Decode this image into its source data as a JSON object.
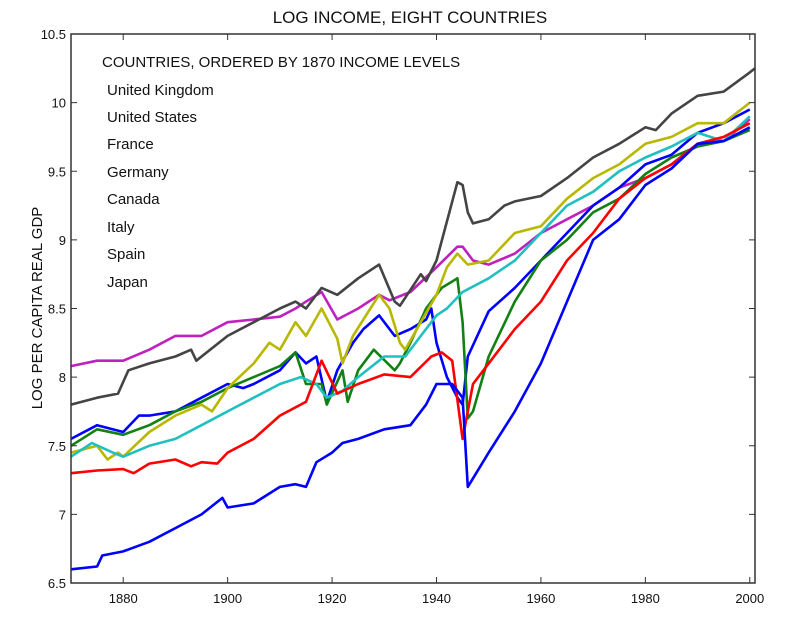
{
  "chart_data": {
    "type": "line",
    "title": "LOG INCOME, EIGHT COUNTRIES",
    "xlabel": "",
    "ylabel": "LOG PER CAPITA REAL GDP",
    "xlim": [
      1870,
      2001
    ],
    "ylim": [
      6.5,
      10.5
    ],
    "xticks": [
      1880,
      1900,
      1920,
      1940,
      1960,
      1980,
      2000
    ],
    "yticks": [
      6.5,
      7,
      7.5,
      8,
      8.5,
      9,
      9.5,
      10,
      10.5
    ],
    "grid": false,
    "legend": {
      "title": "COUNTRIES, ORDERED BY 1870 INCOME LEVELS",
      "placement": "top-left",
      "entries": [
        "United Kingdom",
        "United States",
        "France",
        "Germany",
        "Canada",
        "Italy",
        "Spain",
        "Japan"
      ]
    },
    "series": [
      {
        "color": "#c020c0",
        "points": [
          [
            1870,
            8.08
          ],
          [
            1875,
            8.12
          ],
          [
            1880,
            8.12
          ],
          [
            1885,
            8.2
          ],
          [
            1890,
            8.3
          ],
          [
            1895,
            8.3
          ],
          [
            1900,
            8.4
          ],
          [
            1905,
            8.42
          ],
          [
            1910,
            8.44
          ],
          [
            1913,
            8.5
          ],
          [
            1915,
            8.55
          ],
          [
            1918,
            8.62
          ],
          [
            1921,
            8.42
          ],
          [
            1925,
            8.5
          ],
          [
            1929,
            8.6
          ],
          [
            1931,
            8.56
          ],
          [
            1935,
            8.62
          ],
          [
            1940,
            8.8
          ],
          [
            1944,
            8.95
          ],
          [
            1945,
            8.95
          ],
          [
            1947,
            8.85
          ],
          [
            1950,
            8.82
          ],
          [
            1955,
            8.9
          ],
          [
            1960,
            9.05
          ],
          [
            1965,
            9.15
          ],
          [
            1970,
            9.25
          ],
          [
            1975,
            9.38
          ],
          [
            1980,
            9.45
          ],
          [
            1985,
            9.55
          ],
          [
            1990,
            9.7
          ],
          [
            1995,
            9.72
          ],
          [
            2000,
            9.88
          ]
        ]
      },
      {
        "color": "#444444",
        "points": [
          [
            1870,
            7.8
          ],
          [
            1875,
            7.85
          ],
          [
            1879,
            7.88
          ],
          [
            1881,
            8.05
          ],
          [
            1885,
            8.1
          ],
          [
            1890,
            8.15
          ],
          [
            1893,
            8.2
          ],
          [
            1894,
            8.12
          ],
          [
            1900,
            8.3
          ],
          [
            1905,
            8.4
          ],
          [
            1910,
            8.5
          ],
          [
            1913,
            8.55
          ],
          [
            1915,
            8.5
          ],
          [
            1918,
            8.65
          ],
          [
            1921,
            8.6
          ],
          [
            1925,
            8.72
          ],
          [
            1929,
            8.82
          ],
          [
            1932,
            8.55
          ],
          [
            1933,
            8.52
          ],
          [
            1937,
            8.75
          ],
          [
            1938,
            8.7
          ],
          [
            1940,
            8.85
          ],
          [
            1944,
            9.42
          ],
          [
            1945,
            9.4
          ],
          [
            1946,
            9.2
          ],
          [
            1947,
            9.12
          ],
          [
            1950,
            9.15
          ],
          [
            1953,
            9.25
          ],
          [
            1955,
            9.28
          ],
          [
            1960,
            9.32
          ],
          [
            1965,
            9.45
          ],
          [
            1970,
            9.6
          ],
          [
            1975,
            9.7
          ],
          [
            1980,
            9.82
          ],
          [
            1982,
            9.8
          ],
          [
            1985,
            9.92
          ],
          [
            1990,
            10.05
          ],
          [
            1995,
            10.08
          ],
          [
            2000,
            10.22
          ],
          [
            2001,
            10.25
          ]
        ]
      },
      {
        "color": "#0000ff",
        "points": [
          [
            1870,
            7.55
          ],
          [
            1875,
            7.65
          ],
          [
            1880,
            7.6
          ],
          [
            1883,
            7.72
          ],
          [
            1885,
            7.72
          ],
          [
            1890,
            7.75
          ],
          [
            1895,
            7.85
          ],
          [
            1900,
            7.95
          ],
          [
            1903,
            7.92
          ],
          [
            1905,
            7.95
          ],
          [
            1910,
            8.05
          ],
          [
            1913,
            8.18
          ],
          [
            1915,
            8.1
          ],
          [
            1917,
            8.15
          ],
          [
            1919,
            7.82
          ],
          [
            1921,
            8.05
          ],
          [
            1924,
            8.25
          ],
          [
            1926,
            8.35
          ],
          [
            1929,
            8.45
          ],
          [
            1932,
            8.3
          ],
          [
            1935,
            8.35
          ],
          [
            1938,
            8.42
          ],
          [
            1939,
            8.5
          ],
          [
            1940,
            8.25
          ],
          [
            1942,
            8.0
          ],
          [
            1944,
            7.85
          ],
          [
            1945,
            7.8
          ],
          [
            1946,
            8.15
          ],
          [
            1950,
            8.48
          ],
          [
            1955,
            8.65
          ],
          [
            1960,
            8.85
          ],
          [
            1965,
            9.05
          ],
          [
            1970,
            9.25
          ],
          [
            1975,
            9.38
          ],
          [
            1980,
            9.55
          ],
          [
            1985,
            9.62
          ],
          [
            1990,
            9.78
          ],
          [
            1995,
            9.85
          ],
          [
            2000,
            9.95
          ]
        ]
      },
      {
        "color": "#138013",
        "points": [
          [
            1870,
            7.5
          ],
          [
            1875,
            7.62
          ],
          [
            1880,
            7.58
          ],
          [
            1885,
            7.65
          ],
          [
            1890,
            7.75
          ],
          [
            1895,
            7.82
          ],
          [
            1900,
            7.92
          ],
          [
            1905,
            8.0
          ],
          [
            1910,
            8.08
          ],
          [
            1913,
            8.18
          ],
          [
            1915,
            7.95
          ],
          [
            1918,
            7.95
          ],
          [
            1919,
            7.8
          ],
          [
            1922,
            8.05
          ],
          [
            1923,
            7.82
          ],
          [
            1925,
            8.05
          ],
          [
            1928,
            8.2
          ],
          [
            1932,
            8.05
          ],
          [
            1933,
            8.1
          ],
          [
            1935,
            8.25
          ],
          [
            1938,
            8.5
          ],
          [
            1941,
            8.65
          ],
          [
            1944,
            8.72
          ],
          [
            1945,
            8.4
          ],
          [
            1946,
            7.7
          ],
          [
            1947,
            7.75
          ],
          [
            1950,
            8.15
          ],
          [
            1955,
            8.55
          ],
          [
            1960,
            8.85
          ],
          [
            1965,
            9.0
          ],
          [
            1970,
            9.2
          ],
          [
            1975,
            9.3
          ],
          [
            1980,
            9.48
          ],
          [
            1985,
            9.6
          ],
          [
            1990,
            9.68
          ],
          [
            1995,
            9.72
          ],
          [
            2000,
            9.8
          ]
        ]
      },
      {
        "color": "#b8b800",
        "points": [
          [
            1870,
            7.45
          ],
          [
            1875,
            7.5
          ],
          [
            1877,
            7.4
          ],
          [
            1879,
            7.45
          ],
          [
            1880,
            7.42
          ],
          [
            1885,
            7.6
          ],
          [
            1890,
            7.72
          ],
          [
            1895,
            7.8
          ],
          [
            1897,
            7.75
          ],
          [
            1900,
            7.92
          ],
          [
            1905,
            8.1
          ],
          [
            1908,
            8.25
          ],
          [
            1910,
            8.2
          ],
          [
            1913,
            8.4
          ],
          [
            1915,
            8.3
          ],
          [
            1918,
            8.5
          ],
          [
            1921,
            8.28
          ],
          [
            1922,
            8.1
          ],
          [
            1924,
            8.3
          ],
          [
            1926,
            8.42
          ],
          [
            1929,
            8.6
          ],
          [
            1931,
            8.5
          ],
          [
            1933,
            8.25
          ],
          [
            1934,
            8.2
          ],
          [
            1937,
            8.4
          ],
          [
            1940,
            8.6
          ],
          [
            1942,
            8.8
          ],
          [
            1944,
            8.9
          ],
          [
            1946,
            8.82
          ],
          [
            1950,
            8.85
          ],
          [
            1955,
            9.05
          ],
          [
            1960,
            9.1
          ],
          [
            1965,
            9.3
          ],
          [
            1970,
            9.45
          ],
          [
            1975,
            9.55
          ],
          [
            1980,
            9.7
          ],
          [
            1985,
            9.75
          ],
          [
            1990,
            9.85
          ],
          [
            1995,
            9.85
          ],
          [
            2000,
            10.0
          ]
        ]
      },
      {
        "color": "#20c0c0",
        "points": [
          [
            1870,
            7.42
          ],
          [
            1874,
            7.52
          ],
          [
            1878,
            7.45
          ],
          [
            1880,
            7.42
          ],
          [
            1885,
            7.5
          ],
          [
            1890,
            7.55
          ],
          [
            1895,
            7.65
          ],
          [
            1900,
            7.75
          ],
          [
            1905,
            7.85
          ],
          [
            1910,
            7.95
          ],
          [
            1914,
            8.0
          ],
          [
            1917,
            7.95
          ],
          [
            1919,
            7.85
          ],
          [
            1922,
            7.9
          ],
          [
            1925,
            8.0
          ],
          [
            1930,
            8.15
          ],
          [
            1934,
            8.15
          ],
          [
            1937,
            8.3
          ],
          [
            1940,
            8.45
          ],
          [
            1942,
            8.5
          ],
          [
            1945,
            8.62
          ],
          [
            1950,
            8.72
          ],
          [
            1955,
            8.85
          ],
          [
            1960,
            9.05
          ],
          [
            1965,
            9.25
          ],
          [
            1970,
            9.35
          ],
          [
            1975,
            9.5
          ],
          [
            1980,
            9.6
          ],
          [
            1985,
            9.68
          ],
          [
            1990,
            9.78
          ],
          [
            1995,
            9.72
          ],
          [
            2000,
            9.9
          ]
        ]
      },
      {
        "color": "#ff0000",
        "points": [
          [
            1870,
            7.3
          ],
          [
            1875,
            7.32
          ],
          [
            1880,
            7.33
          ],
          [
            1882,
            7.3
          ],
          [
            1885,
            7.37
          ],
          [
            1890,
            7.4
          ],
          [
            1893,
            7.35
          ],
          [
            1895,
            7.38
          ],
          [
            1898,
            7.37
          ],
          [
            1900,
            7.45
          ],
          [
            1905,
            7.55
          ],
          [
            1910,
            7.72
          ],
          [
            1915,
            7.82
          ],
          [
            1918,
            8.12
          ],
          [
            1921,
            7.88
          ],
          [
            1925,
            7.95
          ],
          [
            1930,
            8.02
          ],
          [
            1935,
            8.0
          ],
          [
            1939,
            8.15
          ],
          [
            1941,
            8.18
          ],
          [
            1943,
            8.12
          ],
          [
            1945,
            7.55
          ],
          [
            1947,
            7.95
          ],
          [
            1950,
            8.1
          ],
          [
            1955,
            8.35
          ],
          [
            1960,
            8.55
          ],
          [
            1965,
            8.85
          ],
          [
            1970,
            9.05
          ],
          [
            1975,
            9.3
          ],
          [
            1980,
            9.45
          ],
          [
            1985,
            9.55
          ],
          [
            1990,
            9.7
          ],
          [
            1995,
            9.75
          ],
          [
            2000,
            9.85
          ]
        ]
      },
      {
        "color": "#0000ff",
        "points": [
          [
            1870,
            6.6
          ],
          [
            1875,
            6.62
          ],
          [
            1876,
            6.7
          ],
          [
            1880,
            6.73
          ],
          [
            1885,
            6.8
          ],
          [
            1890,
            6.9
          ],
          [
            1895,
            7.0
          ],
          [
            1899,
            7.12
          ],
          [
            1900,
            7.05
          ],
          [
            1905,
            7.08
          ],
          [
            1910,
            7.2
          ],
          [
            1913,
            7.22
          ],
          [
            1915,
            7.2
          ],
          [
            1917,
            7.38
          ],
          [
            1920,
            7.45
          ],
          [
            1922,
            7.52
          ],
          [
            1925,
            7.55
          ],
          [
            1930,
            7.62
          ],
          [
            1935,
            7.65
          ],
          [
            1938,
            7.8
          ],
          [
            1940,
            7.95
          ],
          [
            1943,
            7.95
          ],
          [
            1945,
            7.85
          ],
          [
            1946,
            7.2
          ],
          [
            1950,
            7.45
          ],
          [
            1955,
            7.75
          ],
          [
            1960,
            8.1
          ],
          [
            1965,
            8.55
          ],
          [
            1970,
            9.0
          ],
          [
            1975,
            9.15
          ],
          [
            1980,
            9.4
          ],
          [
            1985,
            9.52
          ],
          [
            1990,
            9.7
          ],
          [
            1995,
            9.72
          ],
          [
            2000,
            9.82
          ]
        ]
      }
    ]
  }
}
